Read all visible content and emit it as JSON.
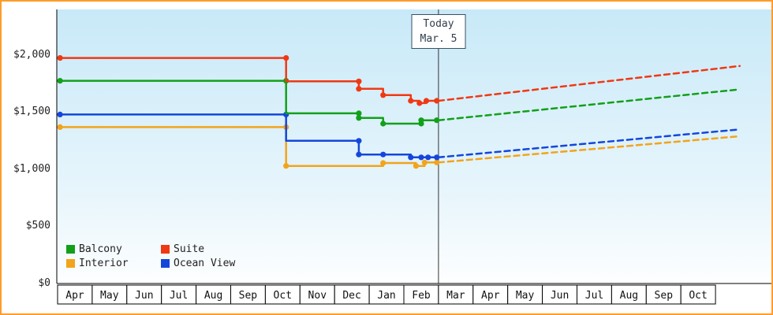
{
  "frame": {
    "border_color": "#FF9B2A"
  },
  "chart_data": {
    "type": "line",
    "description": "Price history (solid step lines) and forecast (dashed lines) by cabin category",
    "x_unit": "month",
    "x_ticks": [
      "Apr",
      "May",
      "Jun",
      "Jul",
      "Aug",
      "Sep",
      "Oct",
      "Nov",
      "Dec",
      "Jan",
      "Feb",
      "Mar",
      "Apr",
      "May",
      "Jun",
      "Jul",
      "Aug",
      "Sep",
      "Oct"
    ],
    "y_ticks": [
      {
        "value": 2000,
        "label": "$2,000"
      },
      {
        "value": 1500,
        "label": "$1,500"
      },
      {
        "value": 1000,
        "label": "$1,000"
      },
      {
        "value": 500,
        "label": "$500"
      },
      {
        "value": 0,
        "label": "$0"
      }
    ],
    "ylim": [
      0,
      2400
    ],
    "grid": false,
    "legend_position": "bottom-left",
    "today": {
      "x_month_index": 11,
      "label_line1": "Today",
      "label_line2": "Mar. 5"
    },
    "series": [
      {
        "name": "Interior",
        "color": "#F2A41B",
        "history": [
          [
            0,
            1370
          ],
          [
            6.6,
            1370
          ],
          [
            6.6,
            1030
          ],
          [
            9.4,
            1030
          ],
          [
            9.4,
            1055
          ],
          [
            10.35,
            1055
          ],
          [
            10.35,
            1030
          ],
          [
            10.6,
            1030
          ],
          [
            10.6,
            1060
          ],
          [
            11,
            1060
          ]
        ],
        "dots": [
          [
            0.07,
            1370
          ],
          [
            6.6,
            1370
          ],
          [
            6.6,
            1030
          ],
          [
            9.4,
            1055
          ],
          [
            10.35,
            1030
          ],
          [
            10.6,
            1060
          ],
          [
            10.95,
            1060
          ]
        ],
        "forecast": [
          [
            11,
            1060
          ],
          [
            19.7,
            1290
          ]
        ]
      },
      {
        "name": "Ocean View",
        "color": "#1546DC",
        "history": [
          [
            0,
            1480
          ],
          [
            6.6,
            1480
          ],
          [
            6.6,
            1250
          ],
          [
            8.7,
            1250
          ],
          [
            8.7,
            1130
          ],
          [
            10.2,
            1130
          ],
          [
            10.2,
            1105
          ],
          [
            11,
            1105
          ]
        ],
        "dots": [
          [
            0.07,
            1480
          ],
          [
            6.6,
            1480
          ],
          [
            8.7,
            1250
          ],
          [
            8.7,
            1130
          ],
          [
            9.4,
            1130
          ],
          [
            10.2,
            1105
          ],
          [
            10.5,
            1105
          ],
          [
            10.7,
            1105
          ],
          [
            10.95,
            1105
          ]
        ],
        "forecast": [
          [
            11,
            1105
          ],
          [
            19.7,
            1350
          ]
        ]
      },
      {
        "name": "Balcony",
        "color": "#12A019",
        "history": [
          [
            0,
            1775
          ],
          [
            6.6,
            1775
          ],
          [
            6.6,
            1490
          ],
          [
            8.7,
            1490
          ],
          [
            8.7,
            1450
          ],
          [
            9.4,
            1450
          ],
          [
            9.4,
            1400
          ],
          [
            10.5,
            1400
          ],
          [
            10.5,
            1430
          ],
          [
            11,
            1430
          ]
        ],
        "dots": [
          [
            0.07,
            1775
          ],
          [
            6.6,
            1775
          ],
          [
            8.7,
            1490
          ],
          [
            8.7,
            1450
          ],
          [
            9.4,
            1400
          ],
          [
            10.5,
            1400
          ],
          [
            10.5,
            1430
          ],
          [
            10.95,
            1430
          ]
        ],
        "forecast": [
          [
            11,
            1430
          ],
          [
            19.7,
            1700
          ]
        ]
      },
      {
        "name": "Suite",
        "color": "#F03813",
        "history": [
          [
            0,
            1975
          ],
          [
            6.6,
            1975
          ],
          [
            6.6,
            1770
          ],
          [
            8.7,
            1770
          ],
          [
            8.7,
            1705
          ],
          [
            9.4,
            1705
          ],
          [
            9.4,
            1650
          ],
          [
            10.2,
            1650
          ],
          [
            10.2,
            1600
          ],
          [
            10.45,
            1600
          ],
          [
            10.45,
            1580
          ],
          [
            10.65,
            1580
          ],
          [
            10.65,
            1600
          ],
          [
            11,
            1600
          ]
        ],
        "dots": [
          [
            0.07,
            1975
          ],
          [
            6.6,
            1975
          ],
          [
            8.7,
            1770
          ],
          [
            8.7,
            1705
          ],
          [
            9.4,
            1650
          ],
          [
            10.2,
            1600
          ],
          [
            10.45,
            1580
          ],
          [
            10.65,
            1600
          ],
          [
            10.95,
            1600
          ]
        ],
        "forecast": [
          [
            11,
            1600
          ],
          [
            19.7,
            1905
          ]
        ]
      }
    ]
  }
}
